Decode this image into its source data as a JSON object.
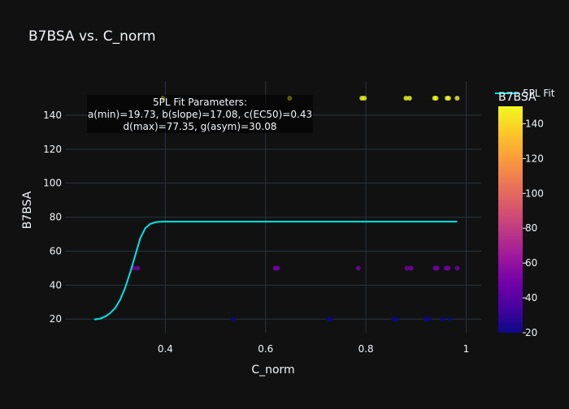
{
  "chart_data": {
    "type": "scatter",
    "title": "B7BSA vs. C_norm",
    "xlabel": "C_norm",
    "ylabel": "B7BSA",
    "xlim": [
      0.2,
      1.03
    ],
    "ylim": [
      12,
      160
    ],
    "xticks": [
      0.4,
      0.6,
      0.8,
      1
    ],
    "xtick_labels": [
      "0.4",
      "0.6",
      "0.8",
      "1"
    ],
    "yticks": [
      20,
      40,
      60,
      80,
      100,
      120,
      140
    ],
    "ytick_labels": [
      "20",
      "40",
      "60",
      "80",
      "100",
      "120",
      "140"
    ],
    "grid": true,
    "points": {
      "x": [
        0.395,
        0.648,
        0.792,
        0.797,
        0.88,
        0.887,
        0.937,
        0.94,
        0.962,
        0.965,
        0.982,
        0.337,
        0.345,
        0.619,
        0.624,
        0.785,
        0.882,
        0.89,
        0.938,
        0.942,
        0.96,
        0.964,
        0.982,
        0.535,
        0.725,
        0.729,
        0.855,
        0.862,
        0.919,
        0.926,
        0.953,
        0.968
      ],
      "y": [
        150,
        150,
        150,
        150,
        150,
        150,
        150,
        150,
        150,
        150,
        150,
        50,
        50,
        50,
        50,
        50,
        50,
        50,
        50,
        50,
        50,
        50,
        50,
        20,
        20,
        20,
        20,
        20,
        20,
        20,
        20,
        20
      ]
    },
    "fit": {
      "name": "5PL Fit",
      "color": "#00e5e5",
      "x": [
        0.258,
        0.27,
        0.28,
        0.29,
        0.3,
        0.31,
        0.32,
        0.33,
        0.34,
        0.35,
        0.36,
        0.37,
        0.38,
        0.39,
        0.4,
        0.45,
        0.5,
        0.6,
        0.7,
        0.8,
        0.9,
        0.982
      ],
      "y": [
        19.8,
        20.3,
        21.5,
        23.5,
        26.5,
        31.5,
        38.5,
        47.5,
        57.5,
        67.5,
        73.5,
        76.0,
        77.0,
        77.3,
        77.35,
        77.35,
        77.35,
        77.35,
        77.35,
        77.35,
        77.35,
        77.35
      ]
    },
    "legend": {
      "label": "5PL Fit",
      "placement": "top-right"
    },
    "annotation": [
      "5PL Fit Parameters:",
      "a(min)=19.73, b(slope)=17.08, c(EC50)=0.43",
      "d(max)=77.35, g(asym)=30.08"
    ],
    "colorbar": {
      "title": "B7BSA",
      "range": [
        20,
        150
      ],
      "ticks": [
        20,
        40,
        60,
        80,
        100,
        120,
        140
      ],
      "tick_labels": [
        "20",
        "40",
        "60",
        "80",
        "100",
        "120",
        "140"
      ],
      "colorscale": [
        "#0d0887",
        "#46039f",
        "#7201a8",
        "#9c179e",
        "#bd3786",
        "#d8576b",
        "#ed7953",
        "#fb9f3a",
        "#fdca26",
        "#f0f921"
      ]
    }
  }
}
